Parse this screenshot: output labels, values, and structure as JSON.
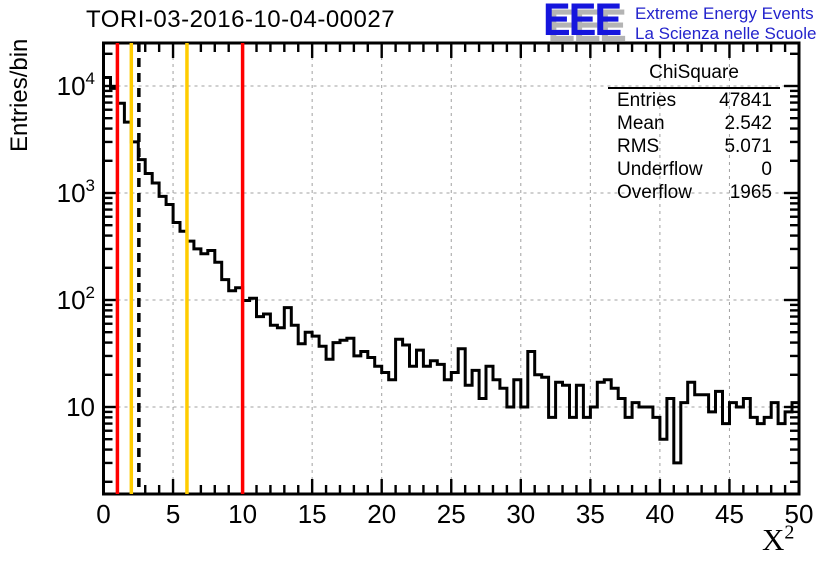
{
  "title": "TORI-03-2016-10-04-00027",
  "logo": {
    "eee": "EEE",
    "line1": "Extreme Energy Events",
    "line2": "La Scienza nelle Scuole",
    "blue": "#1515dd",
    "text_blue": "#2323cc",
    "shadow_gray": "#b4b4b4"
  },
  "stats": {
    "title": "ChiSquare",
    "rows": [
      {
        "label": "Entries",
        "value": "47841"
      },
      {
        "label": "Mean",
        "value": "2.542"
      },
      {
        "label": "RMS",
        "value": "5.071"
      },
      {
        "label": "Underflow",
        "value": "0"
      },
      {
        "label": "Overflow",
        "value": "1965"
      }
    ]
  },
  "chart_data": {
    "type": "bar",
    "style": "step-outline-histogram",
    "title": "TORI-03-2016-10-04-00027",
    "ylabel": "Entries/bin",
    "xlabel_base": "X",
    "xlabel_sup": "2",
    "x_min": 0,
    "x_max": 50,
    "bin_width": 0.5,
    "y_scale": "log",
    "y_view_min": 1.55,
    "y_view_max": 25000,
    "grid": true,
    "x_ticks": [
      {
        "value": 0,
        "label": "0"
      },
      {
        "value": 5,
        "label": "5"
      },
      {
        "value": 10,
        "label": "10"
      },
      {
        "value": 15,
        "label": "15"
      },
      {
        "value": 20,
        "label": "20"
      },
      {
        "value": 25,
        "label": "25"
      },
      {
        "value": 30,
        "label": "30"
      },
      {
        "value": 35,
        "label": "35"
      },
      {
        "value": 40,
        "label": "40"
      },
      {
        "value": 45,
        "label": "45"
      },
      {
        "value": 50,
        "label": "50"
      }
    ],
    "x_minor_step": 1,
    "y_ticks": [
      {
        "value": 10,
        "label": "10",
        "sup": ""
      },
      {
        "value": 100,
        "label": "10",
        "sup": "2"
      },
      {
        "value": 1000,
        "label": "10",
        "sup": "3"
      },
      {
        "value": 10000,
        "label": "10",
        "sup": "4"
      }
    ],
    "values": [
      12000,
      9500,
      6900,
      4600,
      3000,
      2050,
      1520,
      1240,
      930,
      780,
      530,
      440,
      355,
      300,
      270,
      290,
      225,
      155,
      122,
      130,
      99,
      104,
      70,
      74,
      58,
      55,
      85,
      58,
      39,
      50,
      46,
      37,
      28,
      40,
      42,
      44,
      30,
      33,
      29,
      24,
      21,
      18,
      43,
      38,
      24,
      34,
      24,
      27,
      25,
      18,
      21,
      35,
      16,
      22,
      12,
      24,
      18,
      15,
      10,
      18,
      10,
      33,
      20,
      19,
      8,
      17,
      16,
      8,
      16,
      8,
      10,
      17,
      18,
      15,
      12,
      8,
      11,
      10,
      10,
      8,
      5,
      12,
      3,
      11,
      17,
      13,
      13,
      9,
      14,
      7,
      11,
      10,
      12,
      8,
      7,
      8,
      11,
      7,
      9,
      11
    ],
    "marker_lines": [
      {
        "x": 1,
        "color": "#ff0000",
        "style": "solid",
        "name": "red-cut-low"
      },
      {
        "x": 2,
        "color": "#ffcc00",
        "style": "solid",
        "name": "yellow-cut-low"
      },
      {
        "x": 2.542,
        "color": "#000000",
        "style": "dashed",
        "name": "mean-line"
      },
      {
        "x": 6,
        "color": "#ffcc00",
        "style": "solid",
        "name": "yellow-cut-high"
      },
      {
        "x": 10,
        "color": "#ff0000",
        "style": "solid",
        "name": "red-cut-high"
      }
    ],
    "colors": {
      "histogram": "#000000",
      "frame": "#000000",
      "grid": "#a0a0a0"
    },
    "legend_position": "none"
  }
}
